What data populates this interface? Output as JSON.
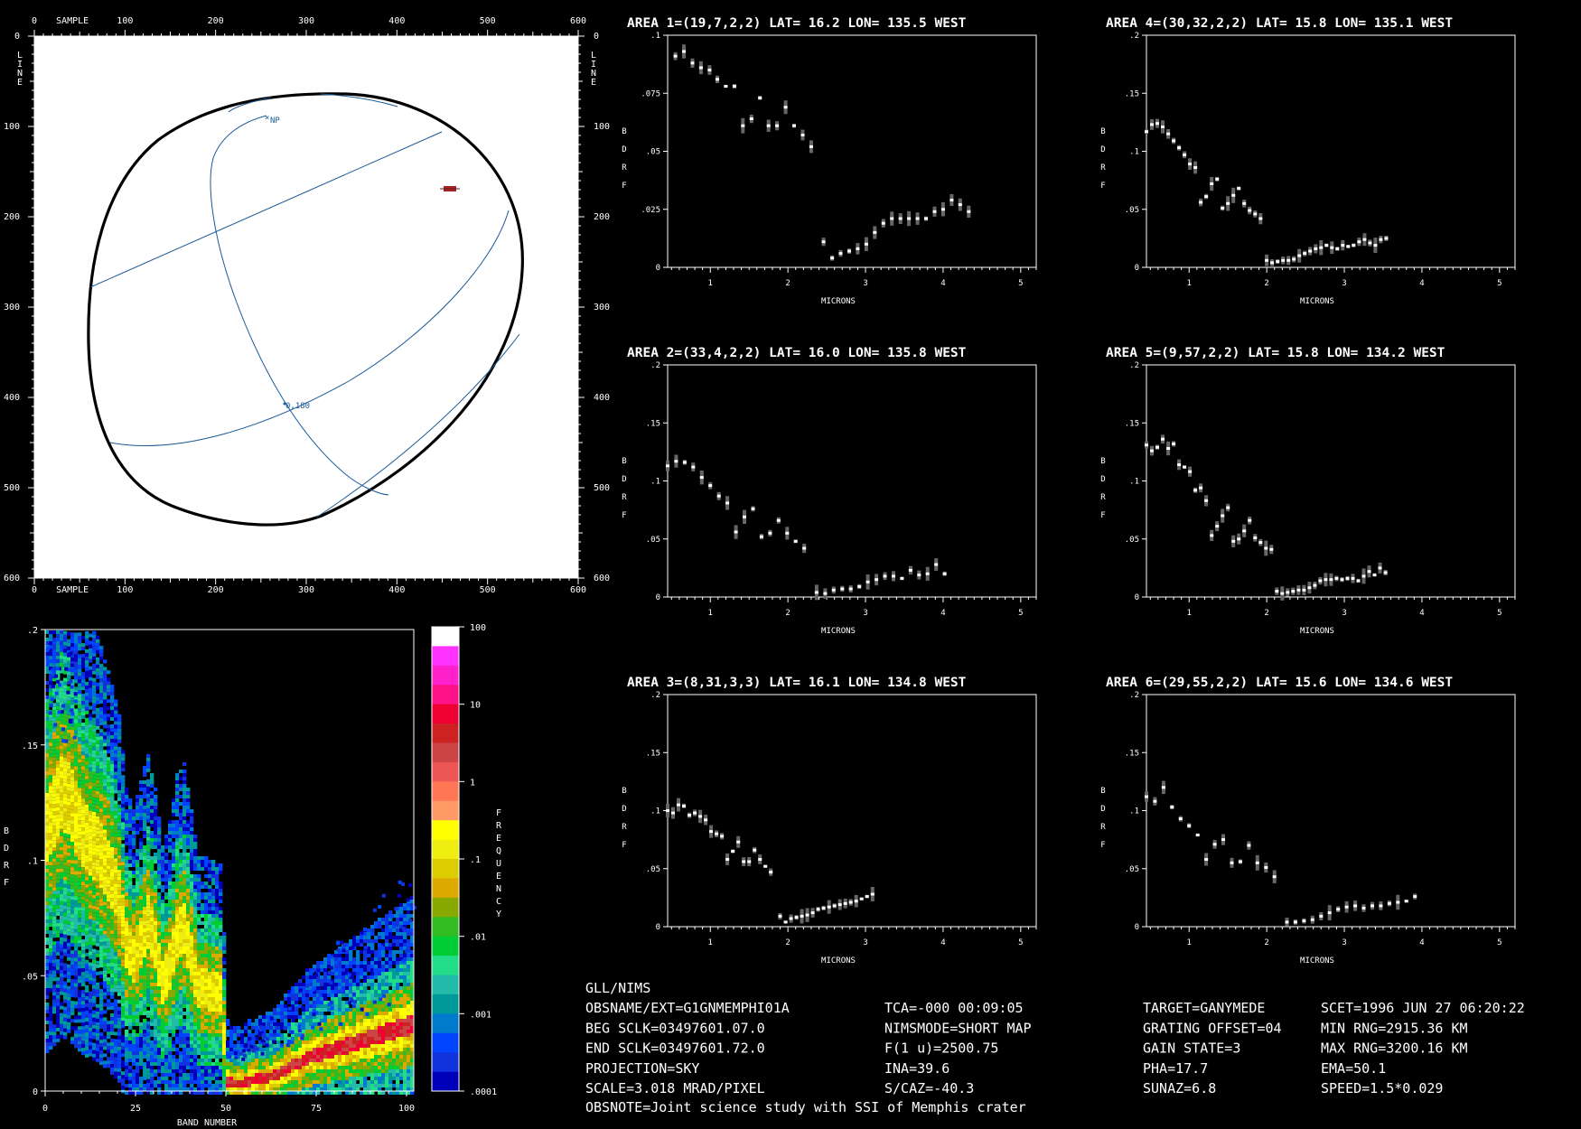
{
  "map": {
    "sample_label": "SAMPLE",
    "line_label": "LINE",
    "ticks": [
      "0",
      "100",
      "200",
      "300",
      "400",
      "500",
      "600"
    ],
    "labels": [
      "NP",
      "0,180"
    ],
    "colors": {
      "background": "#ffffff",
      "grid": "#1a5a96",
      "limb": "#000000"
    }
  },
  "histogram": {
    "xlabel": "BAND NUMBER",
    "ylabel": "BDRF",
    "xticks": [
      "0",
      "25",
      "50",
      "75",
      "100"
    ],
    "yticks": [
      ".2",
      ".15",
      ".1",
      ".05",
      "0"
    ],
    "colorbar_label": "FREQUENCY",
    "colorbar_ticks": [
      "100",
      "10",
      "1",
      ".1",
      ".01",
      ".001",
      ".0001"
    ],
    "colorbar_colors": [
      "#ffffff",
      "#ff33ff",
      "#ff22cc",
      "#ff1188",
      "#ee0033",
      "#cc2222",
      "#cc4444",
      "#ee5555",
      "#ff7755",
      "#ff9966",
      "#ffff00",
      "#eeee11",
      "#ddcc00",
      "#ddaa00",
      "#88aa00",
      "#33bb22",
      "#00cc33",
      "#22dd88",
      "#22bbaa",
      "#009999",
      "#007acc",
      "#0044ff",
      "#1133dd",
      "#0000bb"
    ]
  },
  "spectra_common": {
    "xlabel": "MICRONS",
    "ylabel": "BDRF",
    "xticks": [
      "1",
      "2",
      "3",
      "4",
      "5"
    ]
  },
  "chart_data": [
    {
      "type": "scatter",
      "title": "AREA 1=(19,7,2,2) LAT=  16.2 LON= 135.5 WEST",
      "xlabel": "MICRONS",
      "ylabel": "BDRF",
      "xlim": [
        0.45,
        5.2
      ],
      "ylim": [
        0,
        0.1
      ],
      "yticks": [
        ".1",
        ".075",
        ".05",
        ".025",
        "0"
      ],
      "points": [
        [
          0.55,
          0.091
        ],
        [
          0.66,
          0.093
        ],
        [
          0.77,
          0.088
        ],
        [
          0.88,
          0.086
        ],
        [
          0.99,
          0.085
        ],
        [
          1.09,
          0.081
        ],
        [
          1.2,
          0.078
        ],
        [
          1.31,
          0.078
        ],
        [
          1.42,
          0.061
        ],
        [
          1.53,
          0.064
        ],
        [
          1.64,
          0.073
        ],
        [
          1.75,
          0.061
        ],
        [
          1.86,
          0.061
        ],
        [
          1.97,
          0.069
        ],
        [
          2.08,
          0.061
        ],
        [
          2.19,
          0.057
        ],
        [
          2.3,
          0.052
        ],
        [
          2.46,
          0.011
        ],
        [
          2.57,
          0.004
        ],
        [
          2.68,
          0.006
        ],
        [
          2.79,
          0.007
        ],
        [
          2.9,
          0.008
        ],
        [
          3.01,
          0.01
        ],
        [
          3.12,
          0.015
        ],
        [
          3.23,
          0.019
        ],
        [
          3.34,
          0.021
        ],
        [
          3.45,
          0.021
        ],
        [
          3.56,
          0.021
        ],
        [
          3.67,
          0.021
        ],
        [
          3.78,
          0.021
        ],
        [
          3.89,
          0.024
        ],
        [
          4.0,
          0.025
        ],
        [
          4.11,
          0.029
        ],
        [
          4.22,
          0.027
        ],
        [
          4.33,
          0.024
        ]
      ]
    },
    {
      "type": "scatter",
      "title": "AREA 2=(33,4,2,2) LAT=  16.0 LON= 135.8 WEST",
      "xlabel": "MICRONS",
      "ylabel": "BDRF",
      "xlim": [
        0.45,
        5.2
      ],
      "ylim": [
        0,
        0.2
      ],
      "yticks": [
        ".2",
        ".15",
        ".1",
        ".05",
        "0"
      ],
      "points": [
        [
          0.45,
          0.113
        ],
        [
          0.56,
          0.117
        ],
        [
          0.67,
          0.116
        ],
        [
          0.78,
          0.112
        ],
        [
          0.89,
          0.103
        ],
        [
          1.0,
          0.096
        ],
        [
          1.11,
          0.087
        ],
        [
          1.22,
          0.081
        ],
        [
          1.33,
          0.056
        ],
        [
          1.44,
          0.069
        ],
        [
          1.55,
          0.076
        ],
        [
          1.66,
          0.052
        ],
        [
          1.77,
          0.055
        ],
        [
          1.88,
          0.066
        ],
        [
          1.99,
          0.055
        ],
        [
          2.1,
          0.048
        ],
        [
          2.21,
          0.042
        ],
        [
          2.37,
          0.004
        ],
        [
          2.48,
          0.003
        ],
        [
          2.59,
          0.006
        ],
        [
          2.7,
          0.007
        ],
        [
          2.81,
          0.007
        ],
        [
          2.92,
          0.009
        ],
        [
          3.03,
          0.013
        ],
        [
          3.14,
          0.015
        ],
        [
          3.25,
          0.018
        ],
        [
          3.36,
          0.018
        ],
        [
          3.47,
          0.016
        ],
        [
          3.58,
          0.023
        ],
        [
          3.69,
          0.019
        ],
        [
          3.8,
          0.02
        ],
        [
          3.91,
          0.028
        ],
        [
          4.02,
          0.02
        ]
      ]
    },
    {
      "type": "scatter",
      "title": "AREA 3=(8,31,3,3) LAT=  16.1 LON= 134.8 WEST",
      "xlabel": "MICRONS",
      "ylabel": "BDRF",
      "xlim": [
        0.45,
        5.2
      ],
      "ylim": [
        0,
        0.2
      ],
      "yticks": [
        ".2",
        ".15",
        ".1",
        ".05",
        "0"
      ],
      "points": [
        [
          0.45,
          0.1
        ],
        [
          0.52,
          0.098
        ],
        [
          0.59,
          0.105
        ],
        [
          0.66,
          0.104
        ],
        [
          0.73,
          0.096
        ],
        [
          0.8,
          0.098
        ],
        [
          0.87,
          0.095
        ],
        [
          0.94,
          0.092
        ],
        [
          1.01,
          0.082
        ],
        [
          1.08,
          0.08
        ],
        [
          1.15,
          0.078
        ],
        [
          1.22,
          0.058
        ],
        [
          1.29,
          0.065
        ],
        [
          1.36,
          0.073
        ],
        [
          1.43,
          0.056
        ],
        [
          1.5,
          0.056
        ],
        [
          1.57,
          0.066
        ],
        [
          1.64,
          0.058
        ],
        [
          1.71,
          0.052
        ],
        [
          1.78,
          0.047
        ],
        [
          1.9,
          0.009
        ],
        [
          1.97,
          0.004
        ],
        [
          2.04,
          0.007
        ],
        [
          2.11,
          0.008
        ],
        [
          2.18,
          0.009
        ],
        [
          2.25,
          0.01
        ],
        [
          2.32,
          0.012
        ],
        [
          2.39,
          0.015
        ],
        [
          2.46,
          0.016
        ],
        [
          2.53,
          0.017
        ],
        [
          2.6,
          0.018
        ],
        [
          2.67,
          0.019
        ],
        [
          2.74,
          0.02
        ],
        [
          2.81,
          0.021
        ],
        [
          2.88,
          0.022
        ],
        [
          2.95,
          0.024
        ],
        [
          3.02,
          0.026
        ],
        [
          3.09,
          0.028
        ]
      ]
    },
    {
      "type": "scatter",
      "title": "AREA 4=(30,32,2,2) LAT=  15.8 LON= 135.1 WEST",
      "xlabel": "MICRONS",
      "ylabel": "BDRF",
      "xlim": [
        0.45,
        5.2
      ],
      "ylim": [
        0,
        0.2
      ],
      "yticks": [
        ".2",
        ".15",
        ".1",
        ".05",
        "0"
      ],
      "points": [
        [
          0.45,
          0.117
        ],
        [
          0.52,
          0.123
        ],
        [
          0.59,
          0.124
        ],
        [
          0.66,
          0.121
        ],
        [
          0.73,
          0.115
        ],
        [
          0.8,
          0.109
        ],
        [
          0.87,
          0.103
        ],
        [
          0.94,
          0.097
        ],
        [
          1.01,
          0.089
        ],
        [
          1.08,
          0.086
        ],
        [
          1.15,
          0.056
        ],
        [
          1.22,
          0.061
        ],
        [
          1.29,
          0.072
        ],
        [
          1.36,
          0.076
        ],
        [
          1.43,
          0.051
        ],
        [
          1.5,
          0.055
        ],
        [
          1.57,
          0.062
        ],
        [
          1.64,
          0.068
        ],
        [
          1.71,
          0.055
        ],
        [
          1.78,
          0.049
        ],
        [
          1.85,
          0.046
        ],
        [
          1.92,
          0.042
        ],
        [
          2.0,
          0.006
        ],
        [
          2.07,
          0.004
        ],
        [
          2.14,
          0.005
        ],
        [
          2.21,
          0.006
        ],
        [
          2.28,
          0.006
        ],
        [
          2.35,
          0.007
        ],
        [
          2.42,
          0.01
        ],
        [
          2.49,
          0.012
        ],
        [
          2.56,
          0.014
        ],
        [
          2.63,
          0.016
        ],
        [
          2.7,
          0.017
        ],
        [
          2.77,
          0.019
        ],
        [
          2.84,
          0.017
        ],
        [
          2.91,
          0.016
        ],
        [
          2.98,
          0.019
        ],
        [
          3.05,
          0.018
        ],
        [
          3.12,
          0.019
        ],
        [
          3.19,
          0.022
        ],
        [
          3.26,
          0.024
        ],
        [
          3.33,
          0.021
        ],
        [
          3.4,
          0.019
        ],
        [
          3.47,
          0.024
        ],
        [
          3.54,
          0.025
        ]
      ]
    },
    {
      "type": "scatter",
      "title": "AREA 5=(9,57,2,2) LAT=  15.8 LON= 134.2 WEST",
      "xlabel": "MICRONS",
      "ylabel": "BDRF",
      "xlim": [
        0.45,
        5.2
      ],
      "ylim": [
        0,
        0.2
      ],
      "yticks": [
        ".2",
        ".15",
        ".1",
        ".05",
        "0"
      ],
      "points": [
        [
          0.45,
          0.131
        ],
        [
          0.52,
          0.126
        ],
        [
          0.59,
          0.129
        ],
        [
          0.66,
          0.136
        ],
        [
          0.73,
          0.128
        ],
        [
          0.8,
          0.132
        ],
        [
          0.87,
          0.114
        ],
        [
          0.94,
          0.112
        ],
        [
          1.01,
          0.108
        ],
        [
          1.08,
          0.092
        ],
        [
          1.15,
          0.094
        ],
        [
          1.22,
          0.083
        ],
        [
          1.29,
          0.053
        ],
        [
          1.36,
          0.061
        ],
        [
          1.43,
          0.07
        ],
        [
          1.5,
          0.077
        ],
        [
          1.57,
          0.048
        ],
        [
          1.64,
          0.05
        ],
        [
          1.71,
          0.057
        ],
        [
          1.78,
          0.066
        ],
        [
          1.85,
          0.051
        ],
        [
          1.92,
          0.047
        ],
        [
          1.99,
          0.042
        ],
        [
          2.06,
          0.041
        ],
        [
          2.13,
          0.005
        ],
        [
          2.2,
          0.003
        ],
        [
          2.27,
          0.004
        ],
        [
          2.34,
          0.005
        ],
        [
          2.41,
          0.006
        ],
        [
          2.48,
          0.006
        ],
        [
          2.55,
          0.008
        ],
        [
          2.62,
          0.01
        ],
        [
          2.69,
          0.014
        ],
        [
          2.76,
          0.015
        ],
        [
          2.83,
          0.015
        ],
        [
          2.9,
          0.016
        ],
        [
          2.97,
          0.015
        ],
        [
          3.04,
          0.016
        ],
        [
          3.11,
          0.016
        ],
        [
          3.18,
          0.014
        ],
        [
          3.25,
          0.018
        ],
        [
          3.32,
          0.022
        ],
        [
          3.39,
          0.019
        ],
        [
          3.46,
          0.025
        ],
        [
          3.53,
          0.021
        ]
      ]
    },
    {
      "type": "scatter",
      "title": "AREA 6=(29,55,2,2) LAT=  15.6 LON= 134.6 WEST",
      "xlabel": "MICRONS",
      "ylabel": "BDRF",
      "xlim": [
        0.45,
        5.2
      ],
      "ylim": [
        0,
        0.2
      ],
      "yticks": [
        ".2",
        ".15",
        ".1",
        ".05",
        "0"
      ],
      "points": [
        [
          0.45,
          0.112
        ],
        [
          0.56,
          0.108
        ],
        [
          0.67,
          0.12
        ],
        [
          0.78,
          0.103
        ],
        [
          0.89,
          0.093
        ],
        [
          1.0,
          0.087
        ],
        [
          1.11,
          0.079
        ],
        [
          1.22,
          0.058
        ],
        [
          1.33,
          0.071
        ],
        [
          1.44,
          0.075
        ],
        [
          1.55,
          0.055
        ],
        [
          1.66,
          0.056
        ],
        [
          1.77,
          0.07
        ],
        [
          1.88,
          0.055
        ],
        [
          1.99,
          0.051
        ],
        [
          2.1,
          0.043
        ],
        [
          2.26,
          0.004
        ],
        [
          2.37,
          0.004
        ],
        [
          2.48,
          0.005
        ],
        [
          2.59,
          0.006
        ],
        [
          2.7,
          0.009
        ],
        [
          2.81,
          0.012
        ],
        [
          2.92,
          0.015
        ],
        [
          3.03,
          0.017
        ],
        [
          3.14,
          0.018
        ],
        [
          3.25,
          0.016
        ],
        [
          3.36,
          0.018
        ],
        [
          3.47,
          0.018
        ],
        [
          3.58,
          0.02
        ],
        [
          3.69,
          0.021
        ],
        [
          3.8,
          0.022
        ],
        [
          3.91,
          0.026
        ]
      ]
    },
    {
      "type": "heatmap",
      "xlabel": "BAND NUMBER",
      "ylabel": "BDRF",
      "xlim": [
        0,
        102
      ],
      "ylim": [
        0,
        0.2
      ],
      "colorbar": "FREQUENCY",
      "median_curve": [
        [
          0,
          0.115
        ],
        [
          2,
          0.122
        ],
        [
          4,
          0.13
        ],
        [
          6,
          0.128
        ],
        [
          8,
          0.12
        ],
        [
          10,
          0.113
        ],
        [
          12,
          0.108
        ],
        [
          14,
          0.106
        ],
        [
          16,
          0.1
        ],
        [
          18,
          0.093
        ],
        [
          20,
          0.085
        ],
        [
          22,
          0.064
        ],
        [
          24,
          0.058
        ],
        [
          26,
          0.066
        ],
        [
          28,
          0.074
        ],
        [
          30,
          0.064
        ],
        [
          32,
          0.048
        ],
        [
          34,
          0.055
        ],
        [
          36,
          0.068
        ],
        [
          38,
          0.071
        ],
        [
          40,
          0.058
        ],
        [
          42,
          0.045
        ],
        [
          44,
          0.045
        ],
        [
          46,
          0.044
        ],
        [
          48,
          0.043
        ],
        [
          50,
          0.005
        ],
        [
          52,
          0.004
        ],
        [
          54,
          0.004
        ],
        [
          56,
          0.005
        ],
        [
          58,
          0.006
        ],
        [
          60,
          0.006
        ],
        [
          62,
          0.007
        ],
        [
          64,
          0.008
        ],
        [
          66,
          0.01
        ],
        [
          68,
          0.012
        ],
        [
          70,
          0.013
        ],
        [
          72,
          0.015
        ],
        [
          74,
          0.016
        ],
        [
          76,
          0.017
        ],
        [
          78,
          0.018
        ],
        [
          80,
          0.019
        ],
        [
          82,
          0.02
        ],
        [
          84,
          0.021
        ],
        [
          86,
          0.022
        ],
        [
          88,
          0.023
        ],
        [
          90,
          0.024
        ],
        [
          92,
          0.025
        ],
        [
          94,
          0.026
        ],
        [
          96,
          0.027
        ],
        [
          98,
          0.028
        ],
        [
          100,
          0.029
        ],
        [
          102,
          0.03
        ]
      ]
    }
  ],
  "info": {
    "rows": [
      [
        "GLL/NIMS",
        "",
        "",
        ""
      ],
      [
        "OBSNAME/EXT=G1GNMEMPHI01A",
        "TCA=-000 00:09:05",
        "TARGET=GANYMEDE",
        "SCET=1996 JUN 27 06:20:22"
      ],
      [
        "BEG SCLK=03497601.07.0",
        "NIMSMODE=SHORT MAP",
        "GRATING OFFSET=04",
        "MIN RNG=2915.36 KM"
      ],
      [
        "END SCLK=03497601.72.0",
        "F(1 u)=2500.75",
        "GAIN STATE=3",
        "MAX RNG=3200.16 KM"
      ],
      [
        "PROJECTION=SKY",
        "INA=39.6",
        "PHA=17.7",
        "EMA=50.1"
      ],
      [
        "SCALE=3.018   MRAD/PIXEL",
        "S/CAZ=-40.3",
        "SUNAZ=6.8",
        "SPEED=1.5*0.029"
      ]
    ],
    "note": "OBSNOTE=Joint science study with SSI of Memphis crater"
  }
}
